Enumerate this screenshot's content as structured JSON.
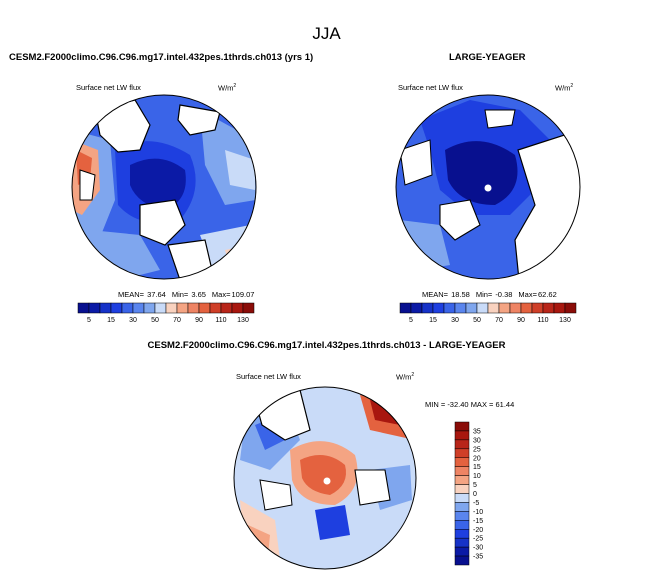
{
  "season": "JJA",
  "colors": {
    "dark_blue": "#08108f",
    "mid_blue": "#1e3fe0",
    "blue": "#3a64e8",
    "light_blue": "#7fa6ee",
    "pale_blue": "#c9dbf8",
    "pale_red": "#f9d2bf",
    "light_red": "#f4a483",
    "red": "#e4623f",
    "dark_red": "#a8170f",
    "land": "#ffffff"
  },
  "chart_data": [
    {
      "type": "heatmap",
      "title": "CESM2.F2000climo.C96.C96.mg17.intel.432pes.1thrds.ch013 (yrs 1)",
      "field_label": "Surface net LW flux",
      "units": "W/m2",
      "units_base": "W/m",
      "units_exp": "2",
      "stats": {
        "mean_label": "MEAN=",
        "mean": "37.64",
        "min_label": "Min=",
        "min": "3.65",
        "max_label": "Max=",
        "max": "109.07"
      },
      "colorbar_levels": [
        5,
        10,
        15,
        20,
        30,
        40,
        50,
        60,
        70,
        80,
        90,
        100,
        110,
        120,
        130
      ],
      "colorbar_labels": [
        "5",
        "15",
        "30",
        "50",
        "70",
        "90",
        "110",
        "130"
      ]
    },
    {
      "type": "heatmap",
      "title": "LARGE-YEAGER",
      "field_label": "Surface net LW flux",
      "units": "W/m2",
      "units_base": "W/m",
      "units_exp": "2",
      "stats": {
        "mean_label": "MEAN=",
        "mean": "18.58",
        "min_label": "Min=",
        "min": "-0.38",
        "max_label": "Max=",
        "max": "62.62"
      },
      "colorbar_levels": [
        5,
        10,
        15,
        20,
        30,
        40,
        50,
        60,
        70,
        80,
        90,
        100,
        110,
        120,
        130
      ],
      "colorbar_labels": [
        "5",
        "15",
        "30",
        "50",
        "70",
        "90",
        "110",
        "130"
      ]
    },
    {
      "type": "heatmap",
      "title": "CESM2.F2000climo.C96.C96.mg17.intel.432pes.1thrds.ch013 - LARGE-YEAGER",
      "field_label": "Surface net LW flux",
      "units": "W/m2",
      "units_base": "W/m",
      "units_exp": "2",
      "stats": {
        "min_label": "MIN =",
        "min": "-32.40",
        "max_label": "MAX =",
        "max": "61.44"
      },
      "colorbar_levels": [
        -35,
        -30,
        -25,
        -20,
        -15,
        -10,
        -5,
        0,
        5,
        10,
        15,
        20,
        25,
        30,
        35
      ],
      "colorbar_labels": [
        "35",
        "30",
        "25",
        "20",
        "15",
        "10",
        "5",
        "0",
        "-5",
        "-10",
        "-15",
        "-20",
        "-25",
        "-30",
        "-35"
      ]
    }
  ]
}
